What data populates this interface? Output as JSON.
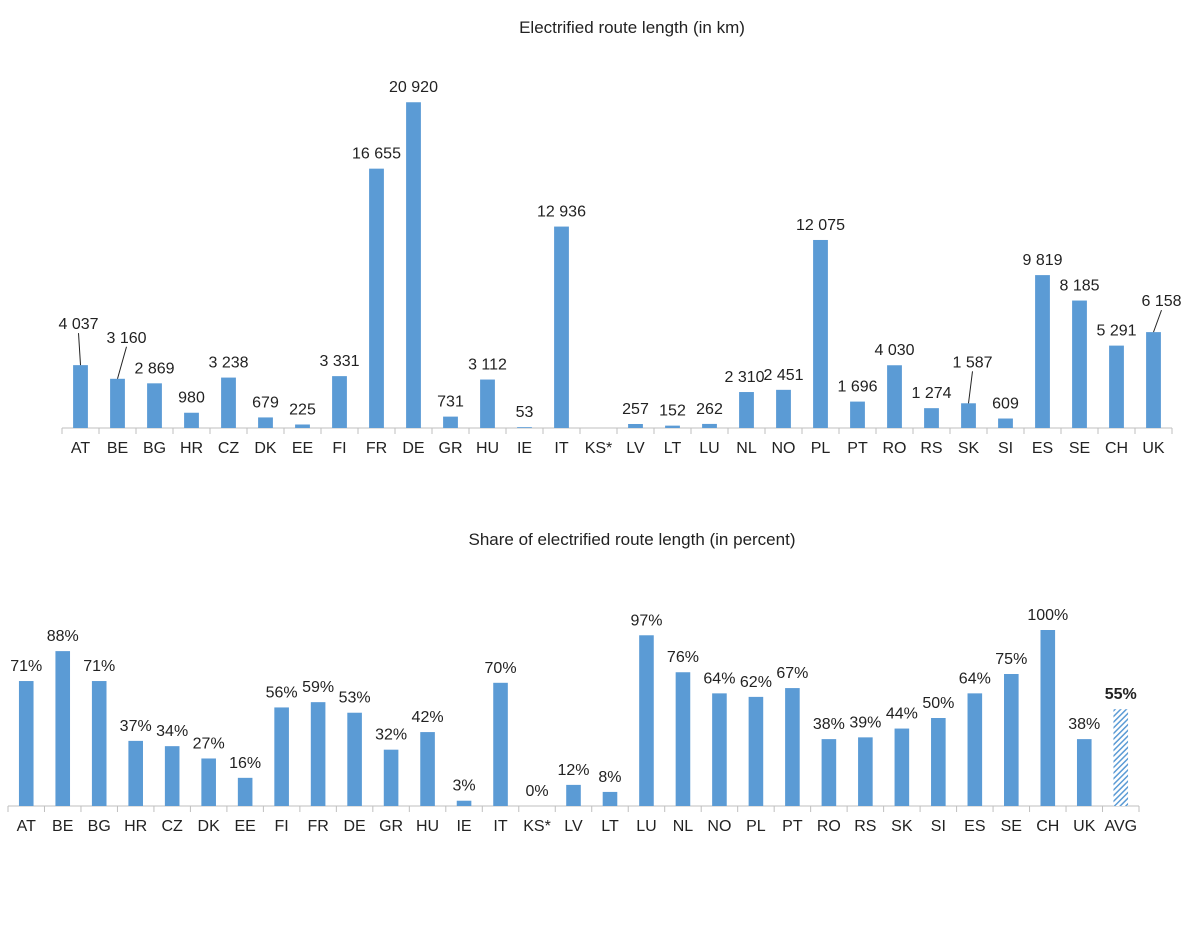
{
  "colors": {
    "bar": "#5b9bd5",
    "axis": "#bfbfbf",
    "text": "#222222"
  },
  "chart_data": [
    {
      "type": "bar",
      "title": "Electrified route length (in km)",
      "categories": [
        "AT",
        "BE",
        "BG",
        "HR",
        "CZ",
        "DK",
        "EE",
        "FI",
        "FR",
        "DE",
        "GR",
        "HU",
        "IE",
        "IT",
        "KS*",
        "LV",
        "LT",
        "LU",
        "NL",
        "NO",
        "PL",
        "PT",
        "RO",
        "RS",
        "SK",
        "SI",
        "ES",
        "SE",
        "CH",
        "UK"
      ],
      "values": [
        4037,
        3160,
        2869,
        980,
        3238,
        679,
        225,
        3331,
        16655,
        20920,
        731,
        3112,
        53,
        12936,
        0,
        257,
        152,
        262,
        2310,
        2451,
        12075,
        1696,
        4030,
        1274,
        1587,
        609,
        9819,
        8185,
        5291,
        6158
      ],
      "labels": [
        "4 037",
        "3 160",
        "2 869",
        "980",
        "3 238",
        "679",
        "225",
        "3 331",
        "16 655",
        "20 920",
        "731",
        "3 112",
        "53",
        "12 936",
        "",
        "257",
        "152",
        "262",
        "2 310",
        "2 451",
        "12 075",
        "1 696",
        "4 030",
        "1 274",
        "1 587",
        "609",
        "9 819",
        "8 185",
        "5 291",
        "6 158"
      ],
      "ylim": [
        0,
        21000
      ],
      "grid": false,
      "legend": "none"
    },
    {
      "type": "bar",
      "title": "Share of electrified route length (in percent)",
      "categories": [
        "AT",
        "BE",
        "BG",
        "HR",
        "CZ",
        "DK",
        "EE",
        "FI",
        "FR",
        "DE",
        "GR",
        "HU",
        "IE",
        "IT",
        "KS*",
        "LV",
        "LT",
        "LU",
        "NL",
        "NO",
        "PL",
        "PT",
        "RO",
        "RS",
        "SK",
        "SI",
        "ES",
        "SE",
        "CH",
        "UK",
        "AVG"
      ],
      "values": [
        71,
        88,
        71,
        37,
        34,
        27,
        16,
        56,
        59,
        53,
        32,
        42,
        3,
        70,
        0,
        12,
        8,
        97,
        76,
        64,
        62,
        67,
        38,
        39,
        44,
        50,
        64,
        75,
        100,
        38,
        55
      ],
      "labels": [
        "71%",
        "88%",
        "71%",
        "37%",
        "34%",
        "27%",
        "16%",
        "56%",
        "59%",
        "53%",
        "32%",
        "42%",
        "3%",
        "70%",
        "0%",
        "12%",
        "8%",
        "97%",
        "76%",
        "64%",
        "62%",
        "67%",
        "38%",
        "39%",
        "44%",
        "50%",
        "64%",
        "75%",
        "100%",
        "38%",
        "55%"
      ],
      "highlight": "AVG",
      "ylim": [
        0,
        100
      ],
      "grid": false,
      "legend": "none"
    }
  ]
}
